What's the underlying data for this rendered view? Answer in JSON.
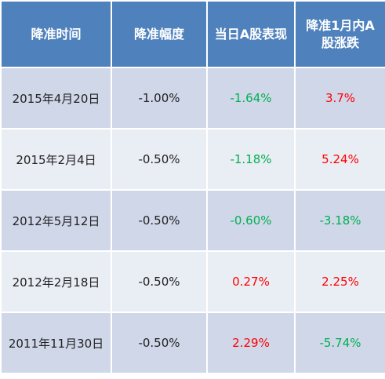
{
  "header": {
    "col1": "降准时间",
    "col2": "降准幅度",
    "col3": "当日A股表现",
    "col4_line1": "降准1月内A",
    "col4_line2": "股涨跌"
  },
  "rows": [
    {
      "date": "2015年4月20日",
      "cut": "-1.00%",
      "day": "-1.64%",
      "month": "3.7%"
    },
    {
      "date": "2015年2月4日",
      "cut": "-0.50%",
      "day": "-1.18%",
      "month": "5.24%"
    },
    {
      "date": "2012年5月12日",
      "cut": "-0.50%",
      "day": "-0.60%",
      "month": "-3.18%"
    },
    {
      "date": "2012年2月18日",
      "cut": "-0.50%",
      "day": "0.27%",
      "month": "2.25%"
    },
    {
      "date": "2011年11月30日",
      "cut": "-0.50%",
      "day": "2.29%",
      "month": "-5.74%"
    }
  ],
  "colors": {
    "header_bg": "#4f81bd",
    "row_odd": "#cfd7e9",
    "row_even": "#e9edf4",
    "positive": "#ff0000",
    "negative": "#00b050"
  }
}
